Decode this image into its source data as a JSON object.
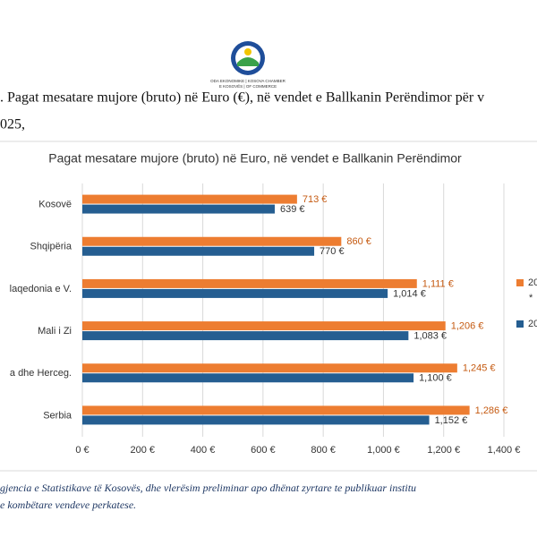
{
  "logo": {
    "lines": [
      "ODA EKONOMIKE | KOSOVA CHAMBER",
      "E KOSOVËS | OF COMMERCE"
    ]
  },
  "heading": {
    "lines": [
      ". Pagat mesatare mujore (bruto) në Euro (€), në vendet e Ballkanin Perëndimor për v",
      "025,"
    ]
  },
  "chart_data": {
    "type": "bar",
    "orientation": "horizontal",
    "title": "Pagat mesatare mujore (bruto) në Euro, në vendet e Ballkanin Perëndimor",
    "categories": [
      "Kosovë",
      "Shqipëria",
      "laqedonia e V.",
      "Mali i Zi",
      "a dhe Herceg.",
      "Serbia"
    ],
    "series": [
      {
        "name": "20",
        "color": "#ed7d31",
        "label_color": "#c55a11",
        "values": [
          713,
          860,
          1111,
          1206,
          1245,
          1286
        ],
        "value_labels": [
          "713 €",
          "860 €",
          "1,111 €",
          "1,206 €",
          "1,245 €",
          "1,286 €"
        ]
      },
      {
        "name": "20",
        "color": "#255e91",
        "label_color": "#333333",
        "values": [
          639,
          770,
          1014,
          1083,
          1100,
          1152
        ],
        "value_labels": [
          "639 €",
          "770 €",
          "1,014 €",
          "1,083 €",
          "1,100 €",
          "1,152 €"
        ]
      }
    ],
    "legend_note": "*",
    "xlim": [
      0,
      1400
    ],
    "xticks": [
      {
        "value": 0,
        "label": "0 €"
      },
      {
        "value": 200,
        "label": "200 €"
      },
      {
        "value": 400,
        "label": "400 €"
      },
      {
        "value": 600,
        "label": "600 €"
      },
      {
        "value": 800,
        "label": "800 €"
      },
      {
        "value": 1000,
        "label": "1,000 €"
      },
      {
        "value": 1200,
        "label": "1,200 €"
      },
      {
        "value": 1400,
        "label": "1,400 €"
      }
    ],
    "grid": true,
    "legend": "right"
  },
  "footer": {
    "lines": [
      "gjencia e Statistikave të Kosovës, dhe vlerësim preliminar apo dhënat zyrtare te publikuar institu",
      "e kombëtare vendeve perkatese."
    ]
  }
}
